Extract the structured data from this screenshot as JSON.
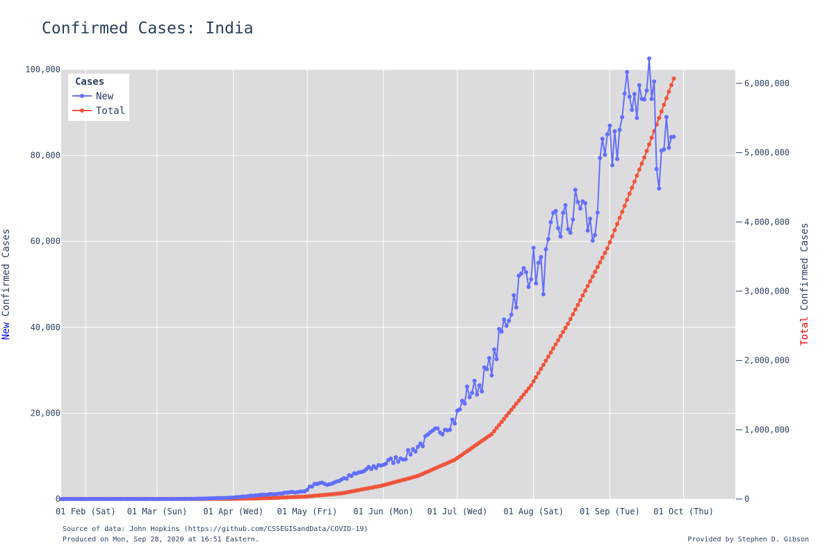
{
  "title": "Confirmed Cases: India",
  "footer": {
    "source": "Source of data: John Hopkins (https://github.com/CSSEGISandData/COVID-19)",
    "produced": "Produced on Mon, Sep 28, 2020 at 16:51 Eastern.",
    "provided": "Provided by Stephen D. Gibson"
  },
  "colors": {
    "new": "#636efa",
    "total": "#ef553b",
    "plot_bg": "#dcdcdf",
    "grid": "#ffffff",
    "text": "#2a3f5f",
    "new_word": "#0000ff",
    "total_word": "#ff0000"
  },
  "chart_data": {
    "type": "line",
    "title": "Confirmed Cases: India",
    "x_start": "2020-01-22",
    "x_end": "2020-09-27",
    "xrange": [
      "2020-01-22",
      "2020-10-22"
    ],
    "x_ticks": [
      "01 Feb (Sat)",
      "01 Mar (Sun)",
      "01 Apr (Wed)",
      "01 May (Fri)",
      "01 Jun (Mon)",
      "01 Jul (Wed)",
      "01 Aug (Sat)",
      "01 Sep (Tue)",
      "01 Oct (Thu)"
    ],
    "x_tick_dates": [
      "2020-02-01",
      "2020-03-01",
      "2020-04-01",
      "2020-05-01",
      "2020-06-01",
      "2020-07-01",
      "2020-08-01",
      "2020-09-01",
      "2020-10-01"
    ],
    "y_left": {
      "label_colored": "New",
      "label_rest": " Confirmed Cases",
      "range": [
        0,
        100000
      ],
      "ticks": [
        0,
        20000,
        40000,
        60000,
        80000,
        100000
      ],
      "tick_labels": [
        "0",
        "20,000",
        "40,000",
        "60,000",
        "80,000",
        "100,000"
      ]
    },
    "y_right": {
      "label_colored": "Total",
      "label_rest": " Confirmed Cases",
      "range": [
        0,
        6200000
      ],
      "ticks": [
        0,
        1000000,
        2000000,
        3000000,
        4000000,
        5000000,
        6000000
      ],
      "tick_labels": [
        "0",
        "1,000,000",
        "2,000,000",
        "3,000,000",
        "4,000,000",
        "5,000,000",
        "6,000,000"
      ]
    },
    "legend": {
      "title": "Cases",
      "position": "top-left"
    },
    "grid": true,
    "series": [
      {
        "name": "New",
        "axis": "left",
        "anchors": [
          [
            "2020-01-22",
            0
          ],
          [
            "2020-02-29",
            0
          ],
          [
            "2020-03-10",
            10
          ],
          [
            "2020-03-20",
            100
          ],
          [
            "2020-03-31",
            300
          ],
          [
            "2020-04-10",
            800
          ],
          [
            "2020-04-20",
            1300
          ],
          [
            "2020-04-30",
            1800
          ],
          [
            "2020-05-04",
            3600
          ],
          [
            "2020-05-10",
            3500
          ],
          [
            "2020-05-20",
            5600
          ],
          [
            "2020-05-31",
            8000
          ],
          [
            "2020-06-10",
            10000
          ],
          [
            "2020-06-20",
            14500
          ],
          [
            "2020-06-30",
            18500
          ],
          [
            "2020-07-05",
            24500
          ],
          [
            "2020-07-10",
            26500
          ],
          [
            "2020-07-16",
            32500
          ],
          [
            "2020-07-20",
            40500
          ],
          [
            "2020-07-25",
            48500
          ],
          [
            "2020-07-31",
            55000
          ],
          [
            "2020-08-05",
            52000
          ],
          [
            "2020-08-10",
            64000
          ],
          [
            "2020-08-15",
            64000
          ],
          [
            "2020-08-20",
            69500
          ],
          [
            "2020-08-25",
            61000
          ],
          [
            "2020-08-29",
            77000
          ],
          [
            "2020-09-05",
            86000
          ],
          [
            "2020-09-10",
            96000
          ],
          [
            "2020-09-15",
            92000
          ],
          [
            "2020-09-17",
            98000
          ],
          [
            "2020-09-19",
            93000
          ],
          [
            "2020-09-21",
            75000
          ],
          [
            "2020-09-23",
            86000
          ],
          [
            "2020-09-25",
            85000
          ],
          [
            "2020-09-26",
            88500
          ],
          [
            "2020-09-27",
            82000
          ]
        ],
        "noise": {
          "seed": 7,
          "amplitude": 0.09
        }
      },
      {
        "name": "Total",
        "axis": "right",
        "anchors": [
          [
            "2020-01-22",
            0
          ],
          [
            "2020-03-15",
            100
          ],
          [
            "2020-03-31",
            1400
          ],
          [
            "2020-04-15",
            12000
          ],
          [
            "2020-04-30",
            34000
          ],
          [
            "2020-05-15",
            82000
          ],
          [
            "2020-05-31",
            190000
          ],
          [
            "2020-06-15",
            333000
          ],
          [
            "2020-06-30",
            567000
          ],
          [
            "2020-07-15",
            937000
          ],
          [
            "2020-07-31",
            1640000
          ],
          [
            "2020-08-15",
            2530000
          ],
          [
            "2020-08-31",
            3620000
          ],
          [
            "2020-09-15",
            4930000
          ],
          [
            "2020-09-27",
            6070000
          ]
        ]
      }
    ]
  }
}
